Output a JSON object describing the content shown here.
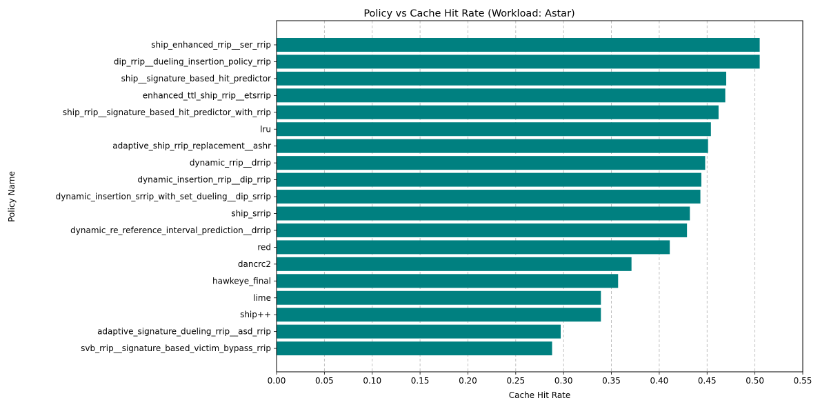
{
  "chart_data": {
    "type": "bar",
    "orientation": "horizontal",
    "title": "Policy vs Cache Hit Rate (Workload: Astar)",
    "xlabel": "Cache Hit Rate",
    "ylabel": "Policy Name",
    "xlim": [
      0,
      0.55
    ],
    "xticks": [
      "0.00",
      "0.05",
      "0.10",
      "0.15",
      "0.20",
      "0.25",
      "0.30",
      "0.35",
      "0.40",
      "0.45",
      "0.50",
      "0.55"
    ],
    "grid": "x-axis dashed",
    "bar_color": "#008080",
    "categories": [
      "ship_enhanced_rrip__ser_rrip",
      "dip_rrip__dueling_insertion_policy_rrip",
      "ship__signature_based_hit_predictor",
      "enhanced_ttl_ship_rrip__etsrrip",
      "ship_rrip__signature_based_hit_predictor_with_rrip",
      "lru",
      "adaptive_ship_rrip_replacement__ashr",
      "dynamic_rrip__drrip",
      "dynamic_insertion_rrip__dip_rrip",
      "dynamic_insertion_srrip_with_set_dueling__dip_srrip",
      "ship_srrip",
      "dynamic_re_reference_interval_prediction__drrip",
      "red",
      "dancrc2",
      "hawkeye_final",
      "lime",
      "ship++",
      "adaptive_signature_dueling_rrip__asd_rrip",
      "svb_rrip__signature_based_victim_bypass_rrip"
    ],
    "values": [
      0.505,
      0.505,
      0.47,
      0.469,
      0.462,
      0.454,
      0.451,
      0.448,
      0.444,
      0.443,
      0.432,
      0.429,
      0.411,
      0.371,
      0.357,
      0.339,
      0.339,
      0.297,
      0.288
    ]
  }
}
